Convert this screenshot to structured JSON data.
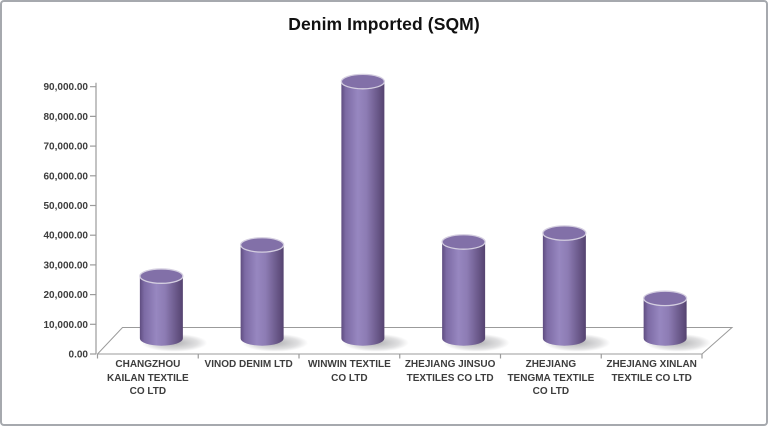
{
  "title": "Denim Imported (SQM)",
  "chart_data": {
    "type": "bar",
    "subtype": "3d-cylinder",
    "title": "Denim Imported (SQM)",
    "categories": [
      "CHANGZHOU KAILAN TEXTILE CO LTD",
      "VINOD DENIM  LTD",
      "WINWIN TEXTILE CO LTD",
      "ZHEJIANG JINSUO TEXTILES CO LTD",
      "ZHEJIANG TENGMA TEXTILE CO LTD",
      "ZHEJIANG XINLAN TEXTILE CO LTD"
    ],
    "category_lines": [
      [
        "CHANGZHOU",
        "KAILAN TEXTILE",
        "CO LTD"
      ],
      [
        "VINOD DENIM  LTD"
      ],
      [
        "WINWIN TEXTILE",
        "CO LTD"
      ],
      [
        "ZHEJIANG JINSUO",
        "TEXTILES CO LTD"
      ],
      [
        "ZHEJIANG",
        "TENGMA TEXTILE",
        "CO LTD"
      ],
      [
        "ZHEJIANG XINLAN",
        "TEXTILE CO LTD"
      ]
    ],
    "values": [
      21000,
      31500,
      86500,
      32500,
      35500,
      13500
    ],
    "xlabel": "",
    "ylabel": "",
    "ylim": [
      0,
      90000
    ],
    "ytick_step": 10000,
    "ytick_labels": [
      "0.00",
      "10,000.00",
      "20,000.00",
      "30,000.00",
      "40,000.00",
      "50,000.00",
      "60,000.00",
      "70,000.00",
      "80,000.00",
      "90,000.00"
    ],
    "grid": false,
    "legend": "none"
  },
  "colors": {
    "bar_fill": "#8064A2",
    "bar_edge_dark": "#554370",
    "bar_edge_left": "#5F4D80",
    "bar_highlight": "#9787C0",
    "bar_top": "#8270A8",
    "bar_top_rim": "#D4CEE0",
    "axis_line": "#9B9B9B",
    "label_text": "#3D3D3D",
    "title_text": "#111111",
    "border": "#A6A9AE",
    "background": "#FFFFFF"
  }
}
